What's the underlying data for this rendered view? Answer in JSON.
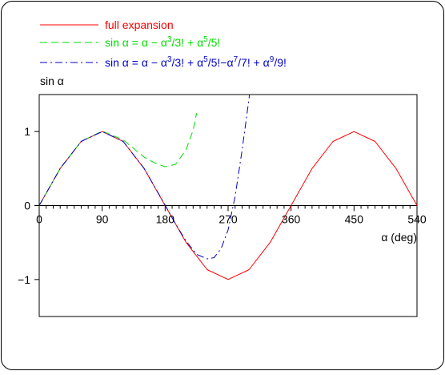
{
  "chart_data": {
    "type": "line",
    "ylabel": "sin α",
    "xlabel": "α (deg)",
    "xlim": [
      0,
      540
    ],
    "ylim": [
      -1.5,
      1.5
    ],
    "xticks": [
      0,
      90,
      180,
      270,
      360,
      450,
      540
    ],
    "xtick_labels": [
      "0",
      "90",
      "180",
      "270",
      "360",
      "450",
      "540"
    ],
    "yticks": [
      -1,
      0,
      1
    ],
    "ytick_labels": [
      "−1",
      "0",
      "1"
    ],
    "x_minor_step": 10,
    "legend_position": "top-left",
    "series": [
      {
        "legend": {
          "text": "full expansion"
        },
        "color": "#ff0000",
        "dash": "solid",
        "x": [
          0,
          30,
          60,
          90,
          120,
          150,
          180,
          210,
          240,
          270,
          300,
          330,
          360,
          390,
          420,
          450,
          480,
          510,
          540
        ],
        "values": [
          0,
          0.5,
          0.866,
          1,
          0.866,
          0.5,
          0,
          -0.5,
          -0.866,
          -1,
          -0.866,
          -0.5,
          0,
          0.5,
          0.866,
          1,
          0.866,
          0.5,
          0
        ]
      },
      {
        "legend": {
          "text": "sin α = α − α",
          "sup1": "3",
          "mid1": "/3! + α",
          "sup2": "5",
          "end": "/5!"
        },
        "color": "#00dd00",
        "dash": "dashed",
        "x": [
          0,
          30,
          60,
          90,
          120,
          150,
          165,
          180,
          195,
          210,
          220,
          225
        ],
        "values": [
          0,
          0.5,
          0.866,
          1.005,
          0.888,
          0.654,
          0.576,
          0.524,
          0.558,
          0.755,
          1.02,
          1.25
        ]
      },
      {
        "legend": {
          "text": "sin α = α − α",
          "sup1": "3",
          "mid1": "/3! + α",
          "sup2": "5",
          "mid2": "/5!−α",
          "sup3": "7",
          "mid3": "/7! + α",
          "sup4": "9",
          "end": "/9!"
        },
        "color": "#0000cc",
        "dash": "dashdot",
        "x": [
          0,
          30,
          60,
          90,
          120,
          150,
          180,
          195,
          210,
          225,
          240,
          250,
          260,
          270,
          280,
          290,
          300,
          305
        ],
        "values": [
          0,
          0.5,
          0.866,
          1,
          0.866,
          0.5,
          0.007,
          -0.25,
          -0.483,
          -0.66,
          -0.72,
          -0.705,
          -0.58,
          -0.33,
          0.12,
          0.75,
          1.45,
          1.9
        ]
      }
    ]
  }
}
